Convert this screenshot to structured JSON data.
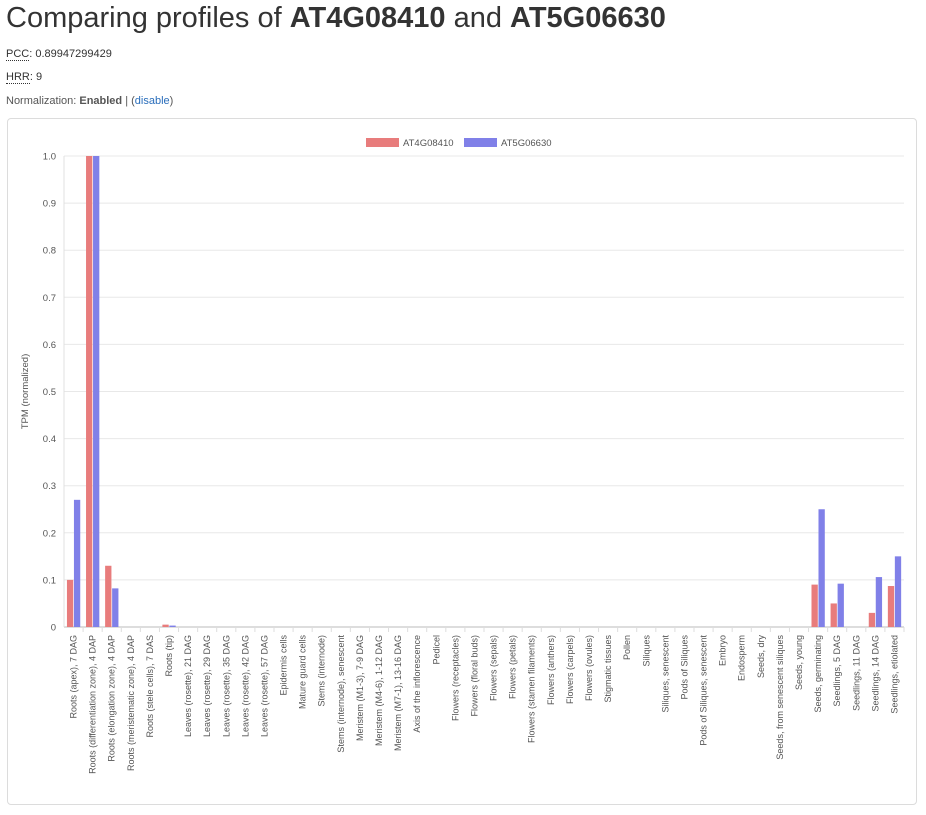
{
  "header": {
    "title_prefix": "Comparing profiles of ",
    "gene_a": "AT4G08410",
    "title_middle": " and ",
    "gene_b": "AT5G06630"
  },
  "stats": {
    "pcc_label": "PCC",
    "pcc_value": ": 0.89947299429",
    "hrr_label": "HRR",
    "hrr_value": ": 9"
  },
  "normalization": {
    "label": "Normalization: ",
    "state": "Enabled",
    "separator": " | (",
    "toggle_label": "disable",
    "close": ")"
  },
  "colors": {
    "series_a": "#e87c7c",
    "series_b": "#8080e8",
    "grid": "#e8e8e8",
    "axis_text": "#555555"
  },
  "chart_data": {
    "type": "bar",
    "ylabel": "TPM (normalized)",
    "xlabel": "",
    "ylim": [
      0,
      1.0
    ],
    "yticks": [
      "0",
      "0.1",
      "0.2",
      "0.3",
      "0.4",
      "0.5",
      "0.6",
      "0.7",
      "0.8",
      "0.9",
      "1.0"
    ],
    "grid": true,
    "legend_position": "top-center",
    "categories": [
      "Roots (apex), 7 DAG",
      "Roots (differentiation zone), 4 DAP",
      "Roots (elongation zone), 4 DAP",
      "Roots (meristematic zone), 4 DAP",
      "Roots (stele cells), 7 DAS",
      "Roots (tip)",
      "Leaves (rosette), 21 DAG",
      "Leaves (rosette), 29 DAG",
      "Leaves (rosette), 35 DAG",
      "Leaves (rosette), 42 DAG",
      "Leaves (rosette), 57 DAG",
      "Epidermis cells",
      "Mature guard cells",
      "Stems (internode)",
      "Stems (internode), senescent",
      "Meristem (M1-3), 7-9 DAG",
      "Meristem (M4-6), 1-12 DAG",
      "Meristem (M7-1), 13-16 DAG",
      "Axis of the inflorescence",
      "Pedicel",
      "Flowers (receptacles)",
      "Flowers (floral buds)",
      "Flowers (sepals)",
      "Flowers (petals)",
      "Flowers (stamen filaments)",
      "Flowers (anthers)",
      "Flowers (carpels)",
      "Flowers (ovules)",
      "Stigmatic tissues",
      "Pollen",
      "Siliques",
      "Siliques, senescent",
      "Pods of Siliques",
      "Pods of Siliques, senescent",
      "Embryo",
      "Endosperm",
      "Seeds, dry",
      "Seeds, from senescent siliques",
      "Seeds, young",
      "Seeds, germinating",
      "Seedlings, 5 DAG",
      "Seedlings, 11 DAG",
      "Seedlings, 14 DAG",
      "Seedlings, etiolated"
    ],
    "series": [
      {
        "name": "AT4G08410",
        "values": [
          0.1,
          1.0,
          0.13,
          0,
          0,
          0.005,
          0,
          0,
          0,
          0,
          0,
          0,
          0,
          0,
          0,
          0,
          0,
          0,
          0,
          0,
          0,
          0,
          0,
          0,
          0,
          0,
          0,
          0,
          0,
          0,
          0,
          0,
          0,
          0,
          0,
          0,
          0,
          0,
          0,
          0.09,
          0.05,
          0,
          0.03,
          0.087
        ]
      },
      {
        "name": "AT5G06630",
        "values": [
          0.27,
          1.0,
          0.082,
          0,
          0,
          0.003,
          0,
          0,
          0,
          0,
          0,
          0,
          0,
          0,
          0,
          0,
          0,
          0,
          0,
          0,
          0,
          0,
          0,
          0,
          0,
          0,
          0,
          0,
          0,
          0,
          0,
          0,
          0,
          0,
          0,
          0,
          0,
          0,
          0,
          0.25,
          0.092,
          0,
          0.106,
          0.15
        ]
      }
    ]
  }
}
